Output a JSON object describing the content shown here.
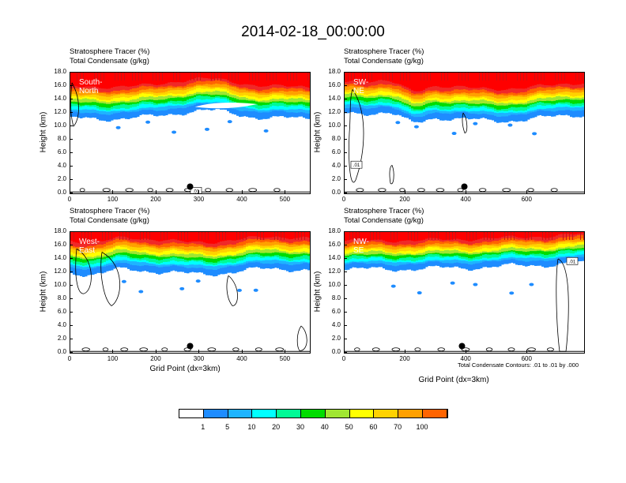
{
  "title": "2014-02-18_00:00:00",
  "contour_note": "Total Condensate Contours: .01 to .01 by .000",
  "colors": [
    "#ffffff",
    "#1e8cff",
    "#1eb4ff",
    "#00ffff",
    "#00fa96",
    "#00dc00",
    "#a0e632",
    "#ffff00",
    "#ffd200",
    "#ffa000",
    "#ff6400",
    "#f02828",
    "#ff0000"
  ],
  "colorbar_labels": [
    "1",
    "5",
    "10",
    "20",
    "30",
    "40",
    "50",
    "60",
    "70",
    "100"
  ],
  "chart_data": [
    {
      "type": "heatmap",
      "label": "South-North",
      "title1": "Stratosphere Tracer   (%)",
      "title2": "Total Condensate   (g/kg)",
      "ylabel": "Height (km)",
      "xlabel": "",
      "ylim": [
        0,
        18
      ],
      "xlim": [
        0,
        556
      ],
      "yticks": [
        "0.0",
        "2.0",
        "4.0",
        "6.0",
        "8.0",
        "10.0",
        "12.0",
        "14.0",
        "16.0",
        "18.0"
      ],
      "xticks": [
        "0",
        "100",
        "200",
        "300",
        "400",
        "500"
      ],
      "xtick_values": [
        0,
        100,
        200,
        300,
        400,
        500
      ],
      "contour_labels": [
        ".01"
      ]
    },
    {
      "type": "heatmap",
      "label": "SW-NE",
      "title1": "Stratosphere Tracer   (%)",
      "title2": "Total Condensate   (g/kg)",
      "ylabel": "Height (km)",
      "xlabel": "",
      "ylim": [
        0,
        18
      ],
      "xlim": [
        0,
        786
      ],
      "yticks": [
        "0.0",
        "2.0",
        "4.0",
        "6.0",
        "8.0",
        "10.0",
        "12.0",
        "14.0",
        "16.0",
        "18.0"
      ],
      "xticks": [
        "0",
        "200",
        "400",
        "600"
      ],
      "xtick_values": [
        0,
        200,
        400,
        600
      ],
      "contour_labels": [
        ".01"
      ]
    },
    {
      "type": "heatmap",
      "label": "West-East",
      "title1": "Stratosphere Tracer   (%)",
      "title2": "Total Condensate   (g/kg)",
      "ylabel": "Height (km)",
      "xlabel": "Grid Point (dx=3km)",
      "ylim": [
        0,
        18
      ],
      "xlim": [
        0,
        556
      ],
      "yticks": [
        "0.0",
        "2.0",
        "4.0",
        "6.0",
        "8.0",
        "10.0",
        "12.0",
        "14.0",
        "16.0",
        "18.0"
      ],
      "xticks": [
        "0",
        "100",
        "200",
        "300",
        "400",
        "500"
      ],
      "xtick_values": [
        0,
        100,
        200,
        300,
        400,
        500
      ],
      "contour_labels": []
    },
    {
      "type": "heatmap",
      "label": "NW-SE",
      "title1": "Stratosphere Tracer   (%)",
      "title2": "Total Condensate   (g/kg)",
      "ylabel": "Height (km)",
      "xlabel": "Grid Point (dx=3km)",
      "ylim": [
        0,
        18
      ],
      "xlim": [
        0,
        786
      ],
      "yticks": [
        "0.0",
        "2.0",
        "4.0",
        "6.0",
        "8.0",
        "10.0",
        "12.0",
        "14.0",
        "16.0",
        "18.0"
      ],
      "xticks": [
        "0",
        "200",
        "400",
        "600"
      ],
      "xtick_values": [
        0,
        200,
        400,
        600
      ],
      "contour_labels": [
        ".01"
      ]
    }
  ]
}
